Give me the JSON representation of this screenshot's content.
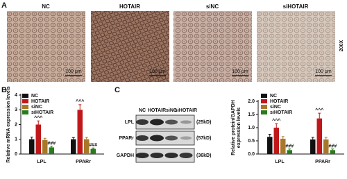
{
  "figure": {
    "panel_labels": [
      "A",
      "B",
      "C"
    ],
    "panel_a": {
      "images": [
        {
          "label": "NC",
          "scale": "100 μm"
        },
        {
          "label": "HOTAIR",
          "scale": "100 μm"
        },
        {
          "label": "siNC",
          "scale": "100 μm"
        },
        {
          "label": "siHOTAIR",
          "scale": "100 μm"
        }
      ],
      "magnification": "200X"
    },
    "panel_c_blot": {
      "lanes": [
        "NC",
        "HOTAIR",
        "siNC",
        "siHOTAIR"
      ],
      "rows": [
        {
          "label": "LPL",
          "size": "(25kD)"
        },
        {
          "label": "PPARr",
          "size": "(57kD)"
        },
        {
          "label": "GAPDH",
          "size": "(36kD)"
        }
      ]
    }
  },
  "chart_data": [
    {
      "type": "bar",
      "ylabel": [
        "Relative mRNA expression levels"
      ],
      "categories": [
        "LPL",
        "PPARr"
      ],
      "series": [
        {
          "name": "NC",
          "color": "#111111",
          "values": [
            1.0,
            1.0
          ],
          "errors": [
            0.15,
            0.12
          ]
        },
        {
          "name": "HOTAIR",
          "color": "#c0181a",
          "values": [
            2.0,
            3.0
          ],
          "errors": [
            0.25,
            0.35
          ],
          "significance": [
            "^^^",
            "^^^"
          ]
        },
        {
          "name": "siNC",
          "color": "#a8782a",
          "values": [
            0.95,
            1.0
          ],
          "errors": [
            0.12,
            0.13
          ]
        },
        {
          "name": "siHOTAIR",
          "color": "#2a7a1e",
          "values": [
            0.45,
            0.35
          ],
          "errors": [
            0.08,
            0.06
          ],
          "significance": [
            "###",
            "###"
          ]
        }
      ],
      "ylim": [
        0,
        4
      ],
      "yticks": [
        0,
        1,
        2,
        3,
        4
      ],
      "legend": "upper left"
    },
    {
      "type": "bar",
      "ylabel": [
        "Relative protein/GAPDH",
        "expression levels"
      ],
      "categories": [
        "LPL",
        "PPARr"
      ],
      "series": [
        {
          "name": "NC",
          "color": "#111111",
          "values": [
            0.65,
            0.55
          ],
          "errors": [
            0.1,
            0.08
          ]
        },
        {
          "name": "HOTAIR",
          "color": "#c0181a",
          "values": [
            1.0,
            1.35
          ],
          "errors": [
            0.15,
            0.2
          ],
          "significance": [
            "^^^",
            "^^^"
          ]
        },
        {
          "name": "siNC",
          "color": "#a8782a",
          "values": [
            0.58,
            0.55
          ],
          "errors": [
            0.08,
            0.08
          ]
        },
        {
          "name": "siHOTAIR",
          "color": "#2a7a1e",
          "values": [
            0.15,
            0.15
          ],
          "errors": [
            0.04,
            0.04
          ],
          "significance": [
            "###",
            "###"
          ]
        }
      ],
      "ylim": [
        0,
        2
      ],
      "yticks": [
        {
          "value": 0,
          "label": "0.0"
        },
        {
          "value": 0.5,
          "label": "0.5"
        },
        {
          "value": 1,
          "label": "1.0"
        },
        {
          "value": 1.5,
          "label": "1.5"
        },
        {
          "value": 2,
          "label": "2.0"
        }
      ],
      "legend": "upper left"
    }
  ]
}
